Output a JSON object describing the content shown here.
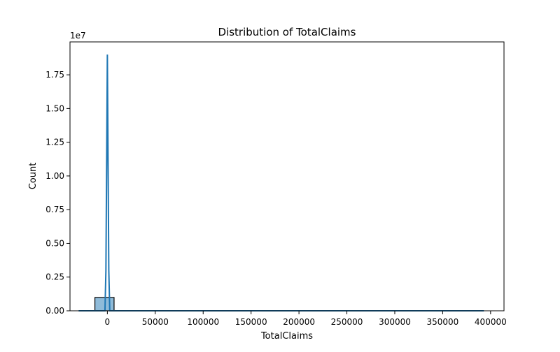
{
  "chart_data": {
    "type": "bar",
    "title": "Distribution of TotalClaims",
    "xlabel": "TotalClaims",
    "ylabel": "Count",
    "y_offset_label": "1e7",
    "xlim": [
      -39000,
      414000
    ],
    "ylim": [
      0,
      19940000
    ],
    "x_ticks": [
      0,
      50000,
      100000,
      150000,
      200000,
      250000,
      300000,
      350000,
      400000
    ],
    "x_tick_labels": [
      "0",
      "50000",
      "100000",
      "150000",
      "200000",
      "250000",
      "300000",
      "350000",
      "400000"
    ],
    "y_ticks": [
      0,
      2500000,
      5000000,
      7500000,
      10000000,
      12500000,
      15000000,
      17500000
    ],
    "y_tick_labels": [
      "0.00",
      "0.25",
      "0.50",
      "0.75",
      "1.00",
      "1.25",
      "1.50",
      "1.75"
    ],
    "bins": [
      {
        "x0": -13000,
        "x1": 7000,
        "count": 990000
      },
      {
        "x0": 7000,
        "x1": 393000,
        "count": 0
      }
    ],
    "kde": {
      "x": [
        -30000,
        -15000,
        -5000,
        -2500,
        -1500,
        0,
        1500,
        2500,
        5000,
        15000,
        30000,
        100000,
        200000,
        300000,
        393000
      ],
      "y": [
        0,
        0,
        0,
        0,
        3000000,
        19000000,
        3000000,
        0,
        0,
        0,
        0,
        0,
        0,
        0,
        0
      ]
    },
    "grid": false,
    "legend": "none",
    "colors": {
      "bar_fill": "#1f77b4",
      "bar_fill_opacity": 0.5,
      "bar_edge": "#000000",
      "kde_line": "#1f77b4"
    }
  }
}
